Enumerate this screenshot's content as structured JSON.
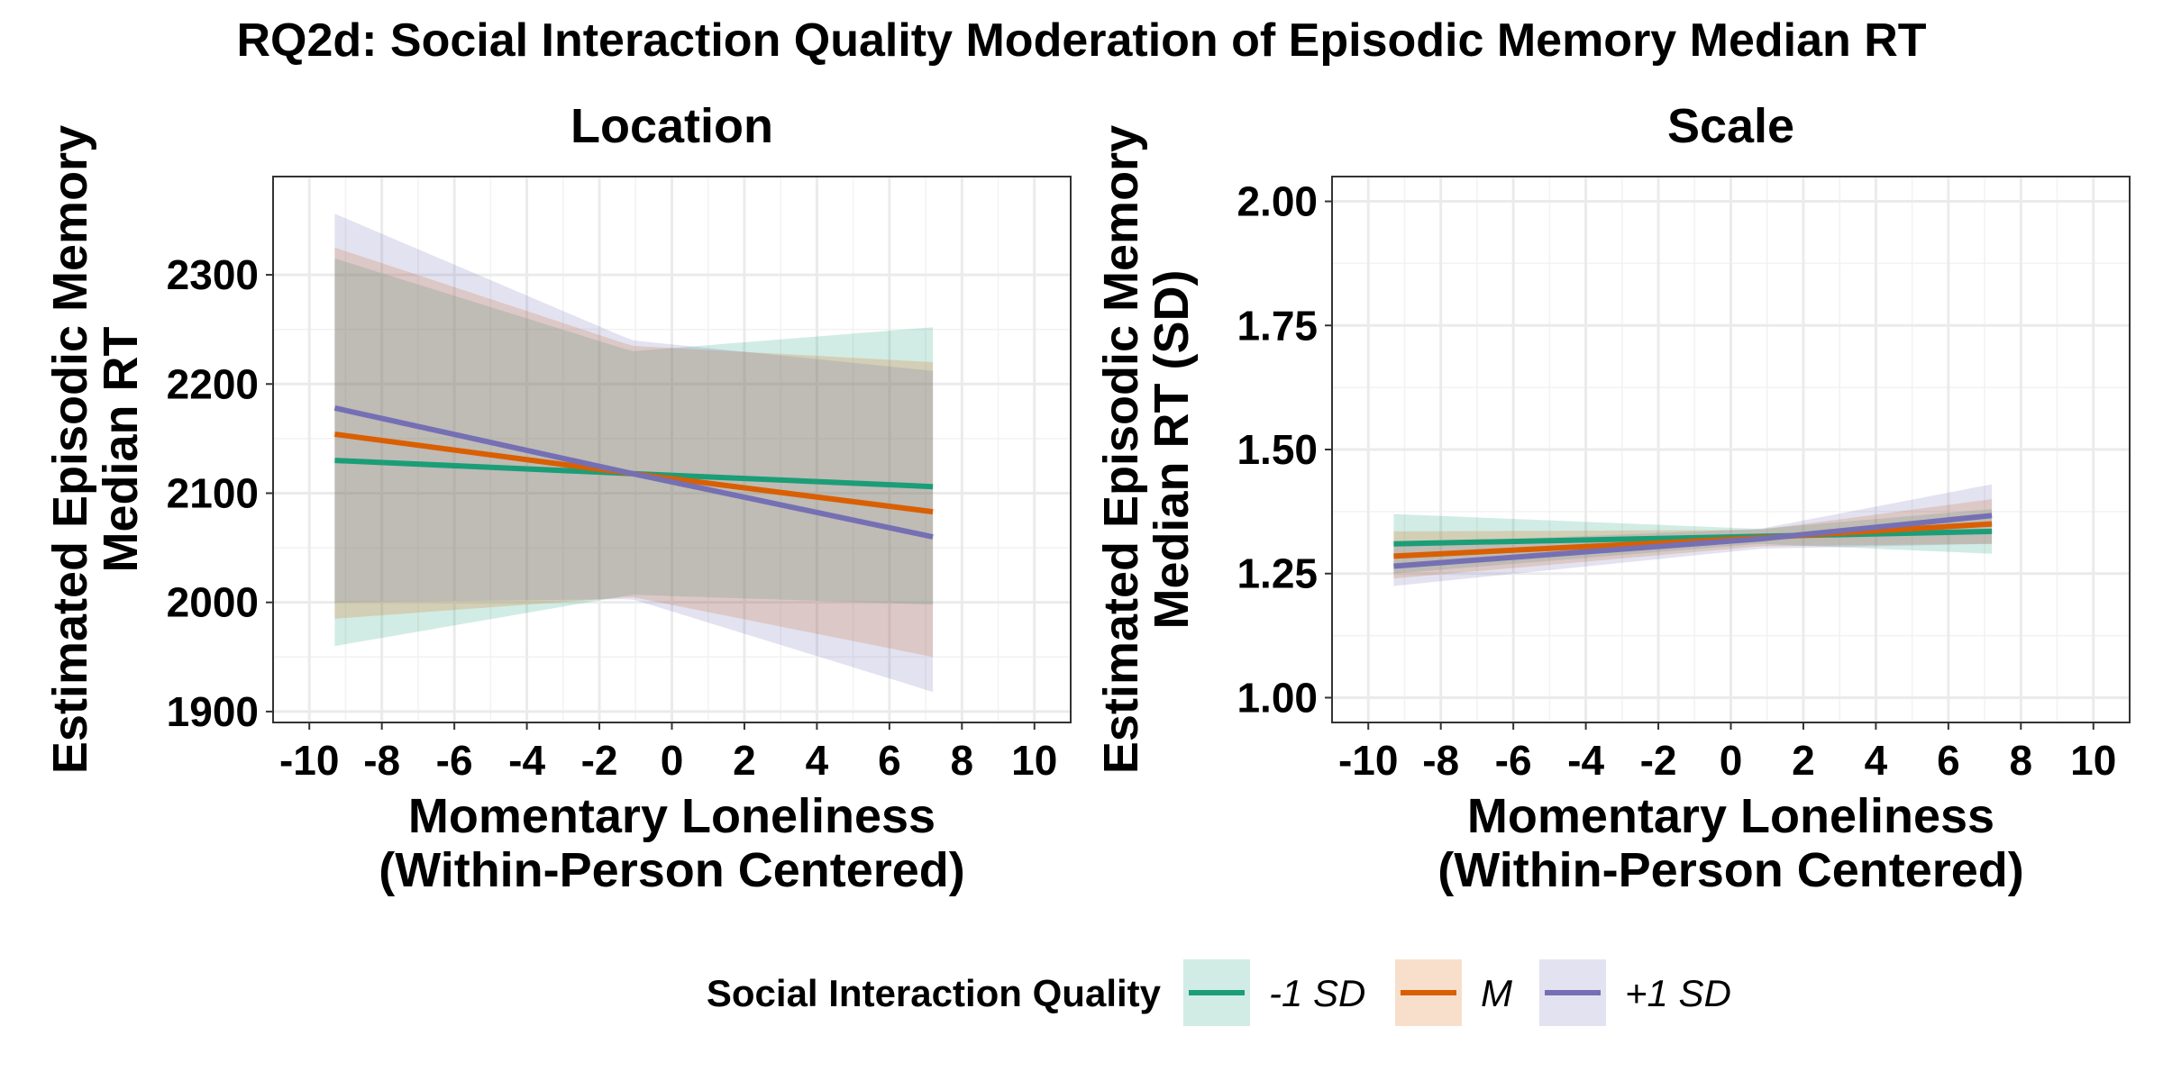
{
  "title": "RQ2d: Social Interaction Quality Moderation of Episodic Memory Median RT",
  "legend": {
    "title": "Social Interaction Quality",
    "items": [
      {
        "label": "-1 SD",
        "color": "#1b9e77",
        "fill": "#d4efe5"
      },
      {
        "label": "M",
        "color": "#d95f02",
        "fill": "#fbdccc"
      },
      {
        "label": "+1 SD",
        "color": "#7570b3",
        "fill": "#dfe1f0"
      }
    ]
  },
  "chart_data": [
    {
      "type": "line",
      "panel": "Location",
      "title": "Location",
      "xlabel": [
        "Momentary Loneliness",
        "(Within-Person Centered)"
      ],
      "ylabel": [
        "Estimated Episodic Memory",
        "Median RT"
      ],
      "xlim": [
        -11,
        11
      ],
      "ylim": [
        1890,
        2390
      ],
      "xticks": [
        -10,
        -8,
        -6,
        -4,
        -2,
        0,
        2,
        4,
        6,
        8,
        10
      ],
      "yticks": [
        1900,
        2000,
        2100,
        2200,
        2300
      ],
      "grid": true,
      "x_range": [
        -9.3,
        7.2
      ],
      "series": [
        {
          "name": "-1 SD",
          "color": "#1b9e77",
          "fill": "#d4efe5",
          "x": [
            -9.3,
            -1.1,
            7.2
          ],
          "y": [
            2130,
            2118,
            2106
          ],
          "lower": [
            1960,
            2007,
            1998
          ],
          "upper": [
            2315,
            2230,
            2252
          ]
        },
        {
          "name": "M",
          "color": "#d95f02",
          "fill": "#fbdccc",
          "x": [
            -9.3,
            -1.1,
            7.2
          ],
          "y": [
            2154,
            2118,
            2083
          ],
          "lower": [
            1985,
            2005,
            1950
          ],
          "upper": [
            2325,
            2235,
            2220
          ]
        },
        {
          "name": "+1 SD",
          "color": "#7570b3",
          "fill": "#dfe1f0",
          "x": [
            -9.3,
            -1.1,
            7.2
          ],
          "y": [
            2178,
            2118,
            2060
          ],
          "lower": [
            2000,
            2003,
            1918
          ],
          "upper": [
            2356,
            2240,
            2212
          ]
        }
      ]
    },
    {
      "type": "line",
      "panel": "Scale",
      "title": "Scale",
      "xlabel": [
        "Momentary Loneliness",
        "(Within-Person Centered)"
      ],
      "ylabel": [
        "Estimated Episodic Memory",
        "Median RT (SD)"
      ],
      "xlim": [
        -11,
        11
      ],
      "ylim": [
        0.95,
        2.05
      ],
      "xticks": [
        -10,
        -8,
        -6,
        -4,
        -2,
        0,
        2,
        4,
        6,
        8,
        10
      ],
      "yticks": [
        1.0,
        1.25,
        1.5,
        1.75,
        2.0
      ],
      "ytick_labels": [
        "1.00",
        "1.25",
        "1.50",
        "1.75",
        "2.00"
      ],
      "grid": true,
      "x_range": [
        -9.3,
        7.2
      ],
      "series": [
        {
          "name": "-1 SD",
          "color": "#1b9e77",
          "fill": "#d4efe5",
          "x": [
            -9.3,
            0.8,
            7.2
          ],
          "y": [
            1.31,
            1.325,
            1.335
          ],
          "lower": [
            1.25,
            1.31,
            1.29
          ],
          "upper": [
            1.37,
            1.34,
            1.38
          ]
        },
        {
          "name": "M",
          "color": "#d95f02",
          "fill": "#fbdccc",
          "x": [
            -9.3,
            0.8,
            7.2
          ],
          "y": [
            1.285,
            1.322,
            1.35
          ],
          "lower": [
            1.24,
            1.305,
            1.31
          ],
          "upper": [
            1.335,
            1.338,
            1.4
          ]
        },
        {
          "name": "+1 SD",
          "color": "#7570b3",
          "fill": "#dfe1f0",
          "x": [
            -9.3,
            0.8,
            7.2
          ],
          "y": [
            1.265,
            1.32,
            1.367
          ],
          "lower": [
            1.225,
            1.3,
            1.31
          ],
          "upper": [
            1.31,
            1.34,
            1.43
          ]
        }
      ]
    }
  ]
}
